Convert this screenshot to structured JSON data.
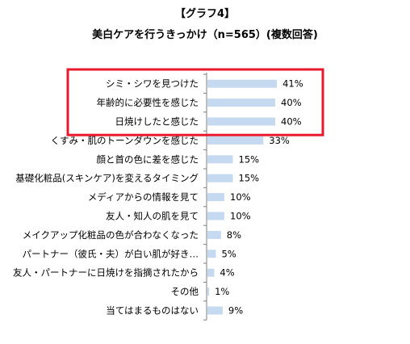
{
  "chart_data": {
    "type": "bar",
    "orientation": "horizontal",
    "title": "【グラフ4】",
    "subtitle": "美白ケアを行うきっかけ（n=565）(複数回答)",
    "categories": [
      "シミ・シワを見つけた",
      "年齢的に必要性を感じた",
      "日焼けしたと感じた",
      "くすみ・肌のトーンダウンを感じた",
      "顔と首の色に差を感じた",
      "基礎化粧品(スキンケア)を変えるタイミング",
      "メディアからの情報を見て",
      "友人・知人の肌を見て",
      "メイクアップ化粧品の色が合わなくなった",
      "パートナー（彼氏・夫）が白い肌が好き…",
      "友人・パートナーに日焼けを指摘されたから",
      "その他",
      "当てはまるものはない"
    ],
    "values": [
      41,
      40,
      40,
      33,
      15,
      15,
      10,
      10,
      8,
      5,
      4,
      1,
      9
    ],
    "value_labels": [
      "41%",
      "40%",
      "40%",
      "33%",
      "15%",
      "15%",
      "10%",
      "10%",
      "8%",
      "5%",
      "4%",
      "1%",
      "9%"
    ],
    "xlim": [
      0,
      100
    ],
    "grid": false,
    "legend": "none",
    "highlighted_categories": [
      0,
      1,
      2
    ]
  },
  "colors": {
    "bar": "#c5d9f1",
    "highlight_box": "#e8192c",
    "axis": "#7f7f7f",
    "text": "#000000"
  }
}
